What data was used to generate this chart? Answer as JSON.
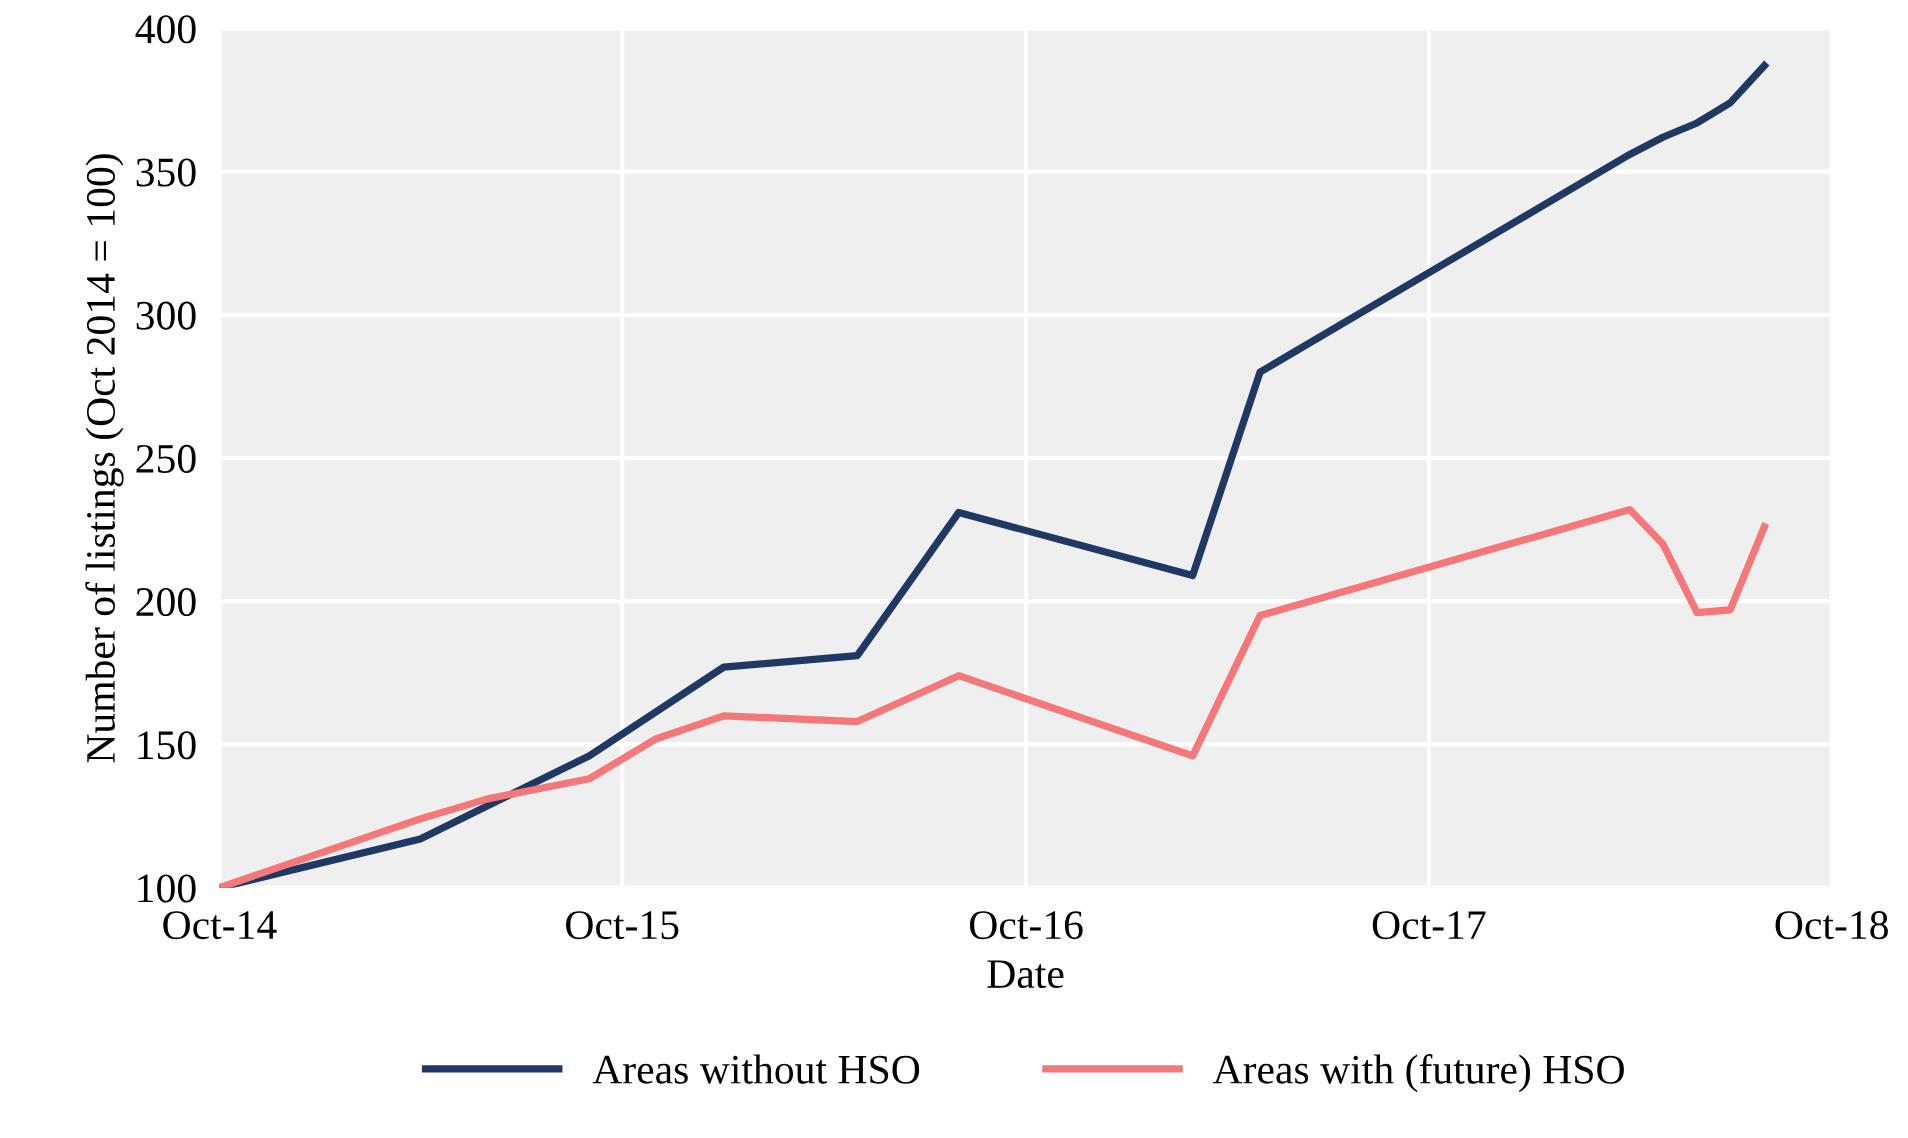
{
  "chart_data": {
    "type": "line",
    "xlabel": "Date",
    "ylabel": "Number of listings (Oct 2014 = 100)",
    "series": [
      {
        "name": "Areas without HSO",
        "color": "#1f3864",
        "x": [
          "2014-10",
          "2015-04",
          "2015-09",
          "2016-01",
          "2016-05",
          "2016-08",
          "2017-03",
          "2017-05",
          "2018-04",
          "2018-05",
          "2018-06",
          "2018-07",
          "2018-08"
        ],
        "values": [
          100,
          117,
          146,
          177,
          181,
          231,
          209,
          280,
          356,
          362,
          367,
          374,
          387
        ]
      },
      {
        "name": "Areas with (future) HSO",
        "color": "#f4777a",
        "x": [
          "2014-10",
          "2015-04",
          "2015-06",
          "2015-09",
          "2015-11",
          "2016-01",
          "2016-05",
          "2016-08",
          "2017-03",
          "2017-05",
          "2018-04",
          "2018-05",
          "2018-06",
          "2018-07",
          "2018-08"
        ],
        "values": [
          100,
          124,
          131,
          138,
          152,
          160,
          158,
          174,
          146,
          195,
          232,
          220,
          196,
          197,
          226
        ]
      }
    ],
    "xlim": [
      "2014-10",
      "2018-10"
    ],
    "ylim": [
      100,
      400
    ],
    "xticks": [
      {
        "value": "2014-10",
        "label": "Oct-14"
      },
      {
        "value": "2015-10",
        "label": "Oct-15"
      },
      {
        "value": "2016-10",
        "label": "Oct-16"
      },
      {
        "value": "2017-10",
        "label": "Oct-17"
      },
      {
        "value": "2018-10",
        "label": "Oct-18"
      }
    ],
    "yticks": [
      100,
      150,
      200,
      250,
      300,
      350,
      400
    ],
    "grid": true,
    "legend": "bottom",
    "marker": "none",
    "line_style": "solid"
  }
}
